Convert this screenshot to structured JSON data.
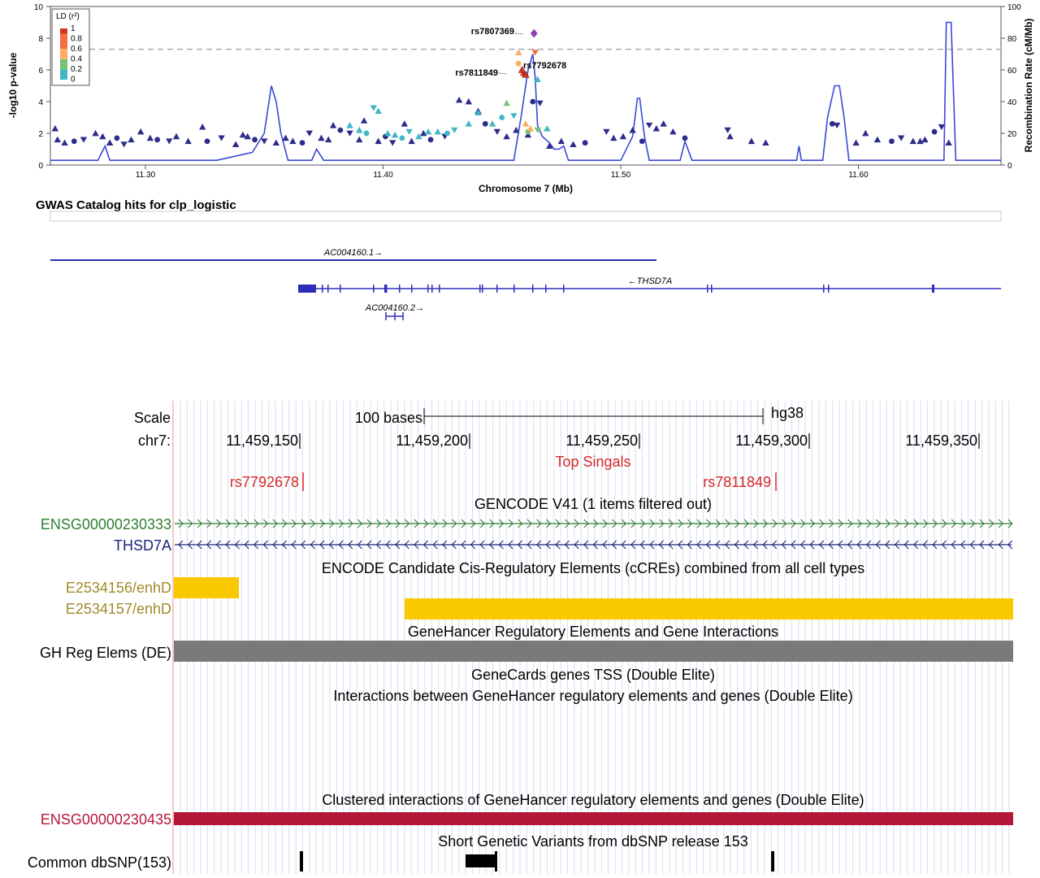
{
  "locuszoom": {
    "y_axis_label": "-log10 p-value",
    "y2_axis_label": "Recombination Rate (cM/Mb)",
    "x_axis_label": "Chromosome 7 (Mb)",
    "legend": {
      "title": "LD (r²)",
      "levels": [
        "1",
        "0.8",
        "0.6",
        "0.4",
        "0.2",
        "0"
      ],
      "colors": [
        "#d7301f",
        "#f46d43",
        "#fdae61",
        "#74c476",
        "#41b6c4",
        "#2c2c8c"
      ]
    },
    "snp_labels": [
      "rs7807369",
      "rs7792678",
      "rs7811849"
    ],
    "section_title": "GWAS Catalog hits for clp_logistic",
    "genes": [
      "AC004160.1→",
      "←THSD7A",
      "AC004160.2→"
    ]
  },
  "chart_data": {
    "type": "scatter",
    "xlabel": "Chromosome 7 (Mb)",
    "ylabel": "-log10 p-value",
    "y2label": "Recombination Rate (cM/Mb)",
    "xlim": [
      11.26,
      11.66
    ],
    "ylim": [
      0,
      10
    ],
    "y2lim": [
      0,
      100
    ],
    "x_ticks": [
      "11.30",
      "11.40",
      "11.50",
      "11.60"
    ],
    "y_ticks": [
      "0",
      "2",
      "4",
      "6",
      "8",
      "10"
    ],
    "y2_ticks": [
      "0",
      "20",
      "40",
      "60",
      "80",
      "100"
    ],
    "significance_line": 7.3,
    "lead_snp": {
      "name": "rs7807369",
      "x": 11.4635,
      "y": 8.3
    },
    "labeled_snps": [
      {
        "name": "rs7792678",
        "x": 11.4585,
        "y": 6.0
      },
      {
        "name": "rs7811849",
        "x": 11.46,
        "y": 5.7
      }
    ],
    "points": [
      {
        "x": 11.262,
        "y": 2.3,
        "ld": 0
      },
      {
        "x": 11.263,
        "y": 1.6,
        "ld": 0
      },
      {
        "x": 11.266,
        "y": 1.4,
        "ld": 0
      },
      {
        "x": 11.27,
        "y": 1.5,
        "ld": 0
      },
      {
        "x": 11.274,
        "y": 1.6,
        "ld": 0
      },
      {
        "x": 11.279,
        "y": 2.0,
        "ld": 0
      },
      {
        "x": 11.282,
        "y": 1.8,
        "ld": 0
      },
      {
        "x": 11.285,
        "y": 1.4,
        "ld": 0
      },
      {
        "x": 11.288,
        "y": 1.7,
        "ld": 0
      },
      {
        "x": 11.291,
        "y": 1.3,
        "ld": 0
      },
      {
        "x": 11.294,
        "y": 1.6,
        "ld": 0
      },
      {
        "x": 11.298,
        "y": 2.1,
        "ld": 0
      },
      {
        "x": 11.302,
        "y": 1.7,
        "ld": 0
      },
      {
        "x": 11.305,
        "y": 1.6,
        "ld": 0
      },
      {
        "x": 11.31,
        "y": 1.5,
        "ld": 0
      },
      {
        "x": 11.313,
        "y": 1.8,
        "ld": 0
      },
      {
        "x": 11.318,
        "y": 1.5,
        "ld": 0
      },
      {
        "x": 11.324,
        "y": 2.4,
        "ld": 0
      },
      {
        "x": 11.326,
        "y": 1.5,
        "ld": 0
      },
      {
        "x": 11.332,
        "y": 1.7,
        "ld": 0
      },
      {
        "x": 11.338,
        "y": 1.3,
        "ld": 0
      },
      {
        "x": 11.341,
        "y": 1.9,
        "ld": 0
      },
      {
        "x": 11.343,
        "y": 1.8,
        "ld": 0
      },
      {
        "x": 11.346,
        "y": 1.6,
        "ld": 0
      },
      {
        "x": 11.35,
        "y": 1.5,
        "ld": 0
      },
      {
        "x": 11.355,
        "y": 1.4,
        "ld": 0
      },
      {
        "x": 11.359,
        "y": 1.7,
        "ld": 0
      },
      {
        "x": 11.362,
        "y": 1.5,
        "ld": 0
      },
      {
        "x": 11.366,
        "y": 1.4,
        "ld": 0
      },
      {
        "x": 11.369,
        "y": 2.0,
        "ld": 0
      },
      {
        "x": 11.374,
        "y": 1.7,
        "ld": 0
      },
      {
        "x": 11.377,
        "y": 1.6,
        "ld": 0
      },
      {
        "x": 11.379,
        "y": 2.5,
        "ld": 0
      },
      {
        "x": 11.382,
        "y": 2.2,
        "ld": 0
      },
      {
        "x": 11.386,
        "y": 2.0,
        "ld": 0
      },
      {
        "x": 11.39,
        "y": 1.6,
        "ld": 0
      },
      {
        "x": 11.392,
        "y": 2.8,
        "ld": 0
      },
      {
        "x": 11.398,
        "y": 1.5,
        "ld": 0
      },
      {
        "x": 11.401,
        "y": 1.8,
        "ld": 0
      },
      {
        "x": 11.404,
        "y": 1.4,
        "ld": 0
      },
      {
        "x": 11.409,
        "y": 2.6,
        "ld": 0
      },
      {
        "x": 11.412,
        "y": 1.5,
        "ld": 0
      },
      {
        "x": 11.417,
        "y": 2.0,
        "ld": 0
      },
      {
        "x": 11.42,
        "y": 1.6,
        "ld": 0
      },
      {
        "x": 11.426,
        "y": 1.8,
        "ld": 0
      },
      {
        "x": 11.432,
        "y": 4.1,
        "ld": 0
      },
      {
        "x": 11.436,
        "y": 4.0,
        "ld": 0
      },
      {
        "x": 11.44,
        "y": 3.4,
        "ld": 0
      },
      {
        "x": 11.443,
        "y": 2.6,
        "ld": 0
      },
      {
        "x": 11.448,
        "y": 2.1,
        "ld": 0
      },
      {
        "x": 11.452,
        "y": 1.8,
        "ld": 0
      },
      {
        "x": 11.456,
        "y": 2.2,
        "ld": 0
      },
      {
        "x": 11.461,
        "y": 1.9,
        "ld": 0
      },
      {
        "x": 11.463,
        "y": 4.0,
        "ld": 0
      },
      {
        "x": 11.466,
        "y": 3.9,
        "ld": 0
      },
      {
        "x": 11.47,
        "y": 1.2,
        "ld": 0
      },
      {
        "x": 11.475,
        "y": 1.5,
        "ld": 0
      },
      {
        "x": 11.48,
        "y": 1.3,
        "ld": 0
      },
      {
        "x": 11.485,
        "y": 1.4,
        "ld": 0
      },
      {
        "x": 11.494,
        "y": 2.1,
        "ld": 0
      },
      {
        "x": 11.497,
        "y": 1.7,
        "ld": 0
      },
      {
        "x": 11.501,
        "y": 1.8,
        "ld": 0
      },
      {
        "x": 11.505,
        "y": 2.2,
        "ld": 0
      },
      {
        "x": 11.509,
        "y": 1.5,
        "ld": 0
      },
      {
        "x": 11.512,
        "y": 2.5,
        "ld": 0
      },
      {
        "x": 11.515,
        "y": 2.3,
        "ld": 0
      },
      {
        "x": 11.518,
        "y": 2.6,
        "ld": 0
      },
      {
        "x": 11.522,
        "y": 2.1,
        "ld": 0
      },
      {
        "x": 11.527,
        "y": 1.7,
        "ld": 0
      },
      {
        "x": 11.545,
        "y": 2.2,
        "ld": 0
      },
      {
        "x": 11.546,
        "y": 1.8,
        "ld": 0
      },
      {
        "x": 11.555,
        "y": 1.5,
        "ld": 0
      },
      {
        "x": 11.561,
        "y": 1.4,
        "ld": 0
      },
      {
        "x": 11.589,
        "y": 2.6,
        "ld": 0
      },
      {
        "x": 11.591,
        "y": 2.5,
        "ld": 0
      },
      {
        "x": 11.599,
        "y": 1.4,
        "ld": 0
      },
      {
        "x": 11.603,
        "y": 2.0,
        "ld": 0
      },
      {
        "x": 11.608,
        "y": 1.6,
        "ld": 0
      },
      {
        "x": 11.614,
        "y": 1.5,
        "ld": 0
      },
      {
        "x": 11.618,
        "y": 1.7,
        "ld": 0
      },
      {
        "x": 11.623,
        "y": 1.5,
        "ld": 0
      },
      {
        "x": 11.626,
        "y": 1.5,
        "ld": 0
      },
      {
        "x": 11.628,
        "y": 1.6,
        "ld": 0
      },
      {
        "x": 11.632,
        "y": 2.1,
        "ld": 0
      },
      {
        "x": 11.635,
        "y": 2.4,
        "ld": 0
      },
      {
        "x": 11.638,
        "y": 1.4,
        "ld": 0
      },
      {
        "x": 11.386,
        "y": 2.5,
        "ld": 0.2
      },
      {
        "x": 11.39,
        "y": 2.2,
        "ld": 0.2
      },
      {
        "x": 11.393,
        "y": 2.0,
        "ld": 0.2
      },
      {
        "x": 11.396,
        "y": 3.6,
        "ld": 0.2
      },
      {
        "x": 11.398,
        "y": 3.4,
        "ld": 0.2
      },
      {
        "x": 11.402,
        "y": 2.0,
        "ld": 0.2
      },
      {
        "x": 11.405,
        "y": 1.9,
        "ld": 0.2
      },
      {
        "x": 11.408,
        "y": 1.7,
        "ld": 0.2
      },
      {
        "x": 11.411,
        "y": 2.1,
        "ld": 0.2
      },
      {
        "x": 11.415,
        "y": 1.8,
        "ld": 0.2
      },
      {
        "x": 11.419,
        "y": 2.1,
        "ld": 0.2
      },
      {
        "x": 11.423,
        "y": 2.1,
        "ld": 0.2
      },
      {
        "x": 11.427,
        "y": 2.0,
        "ld": 0.2
      },
      {
        "x": 11.43,
        "y": 2.2,
        "ld": 0.2
      },
      {
        "x": 11.436,
        "y": 2.6,
        "ld": 0.2
      },
      {
        "x": 11.44,
        "y": 3.3,
        "ld": 0.2
      },
      {
        "x": 11.446,
        "y": 2.6,
        "ld": 0.2
      },
      {
        "x": 11.45,
        "y": 3.0,
        "ld": 0.2
      },
      {
        "x": 11.455,
        "y": 3.1,
        "ld": 0.2
      },
      {
        "x": 11.465,
        "y": 5.4,
        "ld": 0.2
      },
      {
        "x": 11.469,
        "y": 2.3,
        "ld": 0.2
      },
      {
        "x": 11.452,
        "y": 3.9,
        "ld": 0.4
      },
      {
        "x": 11.461,
        "y": 2.1,
        "ld": 0.4
      },
      {
        "x": 11.465,
        "y": 2.2,
        "ld": 0.4
      },
      {
        "x": 11.46,
        "y": 2.6,
        "ld": 0.6
      },
      {
        "x": 11.462,
        "y": 2.3,
        "ld": 0.6
      },
      {
        "x": 11.457,
        "y": 7.1,
        "ld": 0.6
      },
      {
        "x": 11.457,
        "y": 6.4,
        "ld": 0.6
      },
      {
        "x": 11.464,
        "y": 7.1,
        "ld": 0.8
      },
      {
        "x": 11.459,
        "y": 5.8,
        "ld": 1
      }
    ],
    "recombination": {
      "x": [
        11.26,
        11.28,
        11.283,
        11.285,
        11.3,
        11.33,
        11.345,
        11.35,
        11.352,
        11.353,
        11.355,
        11.357,
        11.36,
        11.37,
        11.372,
        11.375,
        11.38,
        11.4,
        11.43,
        11.45,
        11.455,
        11.458,
        11.461,
        11.463,
        11.464,
        11.465,
        11.467,
        11.47,
        11.472,
        11.474,
        11.476,
        11.478,
        11.48,
        11.5,
        11.505,
        11.506,
        11.507,
        11.508,
        11.509,
        11.51,
        11.512,
        11.515,
        11.525,
        11.527,
        11.53,
        11.56,
        11.574,
        11.575,
        11.576,
        11.585,
        11.587,
        11.59,
        11.592,
        11.594,
        11.596,
        11.6,
        11.63,
        11.636,
        11.637,
        11.639,
        11.641,
        11.643,
        11.645,
        11.66
      ],
      "y": [
        3,
        3,
        12,
        3,
        3,
        3,
        8,
        20,
        40,
        50,
        40,
        20,
        3,
        3,
        10,
        3,
        3,
        3,
        3,
        3,
        3,
        30,
        60,
        70,
        55,
        25,
        18,
        14,
        10,
        10,
        12,
        3,
        3,
        3,
        18,
        30,
        42,
        42,
        30,
        18,
        3,
        3,
        3,
        15,
        3,
        3,
        3,
        12,
        3,
        3,
        30,
        50,
        50,
        30,
        3,
        3,
        3,
        3,
        90,
        90,
        3,
        3,
        3,
        3
      ]
    }
  },
  "browser": {
    "scale_label": "Scale",
    "scale_bar": "100 bases",
    "assembly": "hg38",
    "chrom_label": "chr7:",
    "positions": [
      "11,459,150",
      "11,459,200",
      "11,459,250",
      "11,459,300",
      "11,459,350"
    ],
    "top_signals_title": "Top Singals",
    "signal_labels": [
      "rs7792678",
      "rs7811849"
    ],
    "gencode_title": "GENCODE V41 (1 items filtered out)",
    "gene1": "ENSG00000230333",
    "gene2": "THSD7A",
    "encode_title": "ENCODE Candidate Cis-Regulatory Elements (cCREs) combined from all cell types",
    "ccre1": "E2534156/enhD",
    "ccre2": "E2534157/enhD",
    "genehancer_title": "GeneHancer Regulatory Elements and Gene Interactions",
    "gh_label": "GH Reg Elems (DE)",
    "tss_title": "GeneCards genes TSS (Double Elite)",
    "interactions_title": "Interactions between GeneHancer regulatory elements and genes (Double Elite)",
    "clustered_title": "Clustered interactions of GeneHancer regulatory elements and genes (Double Elite)",
    "cluster_gene": "ENSG00000230435",
    "dbsnp_title": "Short Genetic Variants from dbSNP release 153",
    "dbsnp_label": "Common dbSNP(153)",
    "colors": {
      "signal_red": "#d62728",
      "gene_green": "#2e7d32",
      "gene_navy": "#1a237e",
      "ccre_yellow": "#fbc900",
      "ccre_label": "#a08a2a",
      "gh_gray": "#7a7a7a",
      "cluster_red": "#b5173a"
    }
  }
}
